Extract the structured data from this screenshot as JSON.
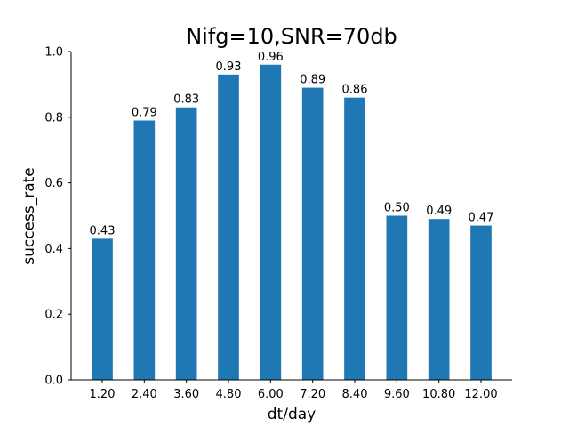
{
  "chart_data": {
    "type": "bar",
    "title": "Nifg=10,SNR=70db",
    "xlabel": "dt/day",
    "ylabel": "success_rate",
    "categories": [
      "1.20",
      "2.40",
      "3.60",
      "4.80",
      "6.00",
      "7.20",
      "8.40",
      "9.60",
      "10.80",
      "12.00"
    ],
    "values": [
      0.43,
      0.79,
      0.83,
      0.93,
      0.96,
      0.89,
      0.86,
      0.5,
      0.49,
      0.47
    ],
    "data_labels": [
      "0.43",
      "0.79",
      "0.83",
      "0.93",
      "0.96",
      "0.89",
      "0.86",
      "0.50",
      "0.49",
      "0.47"
    ],
    "ylim": [
      0,
      1.0
    ],
    "yticks": [
      0.0,
      0.2,
      0.4,
      0.6,
      0.8,
      1.0
    ],
    "ytick_labels": [
      "0.0",
      "0.2",
      "0.4",
      "0.6",
      "0.8",
      "1.0"
    ],
    "grid": false,
    "bar_color": "#1f77b4"
  }
}
